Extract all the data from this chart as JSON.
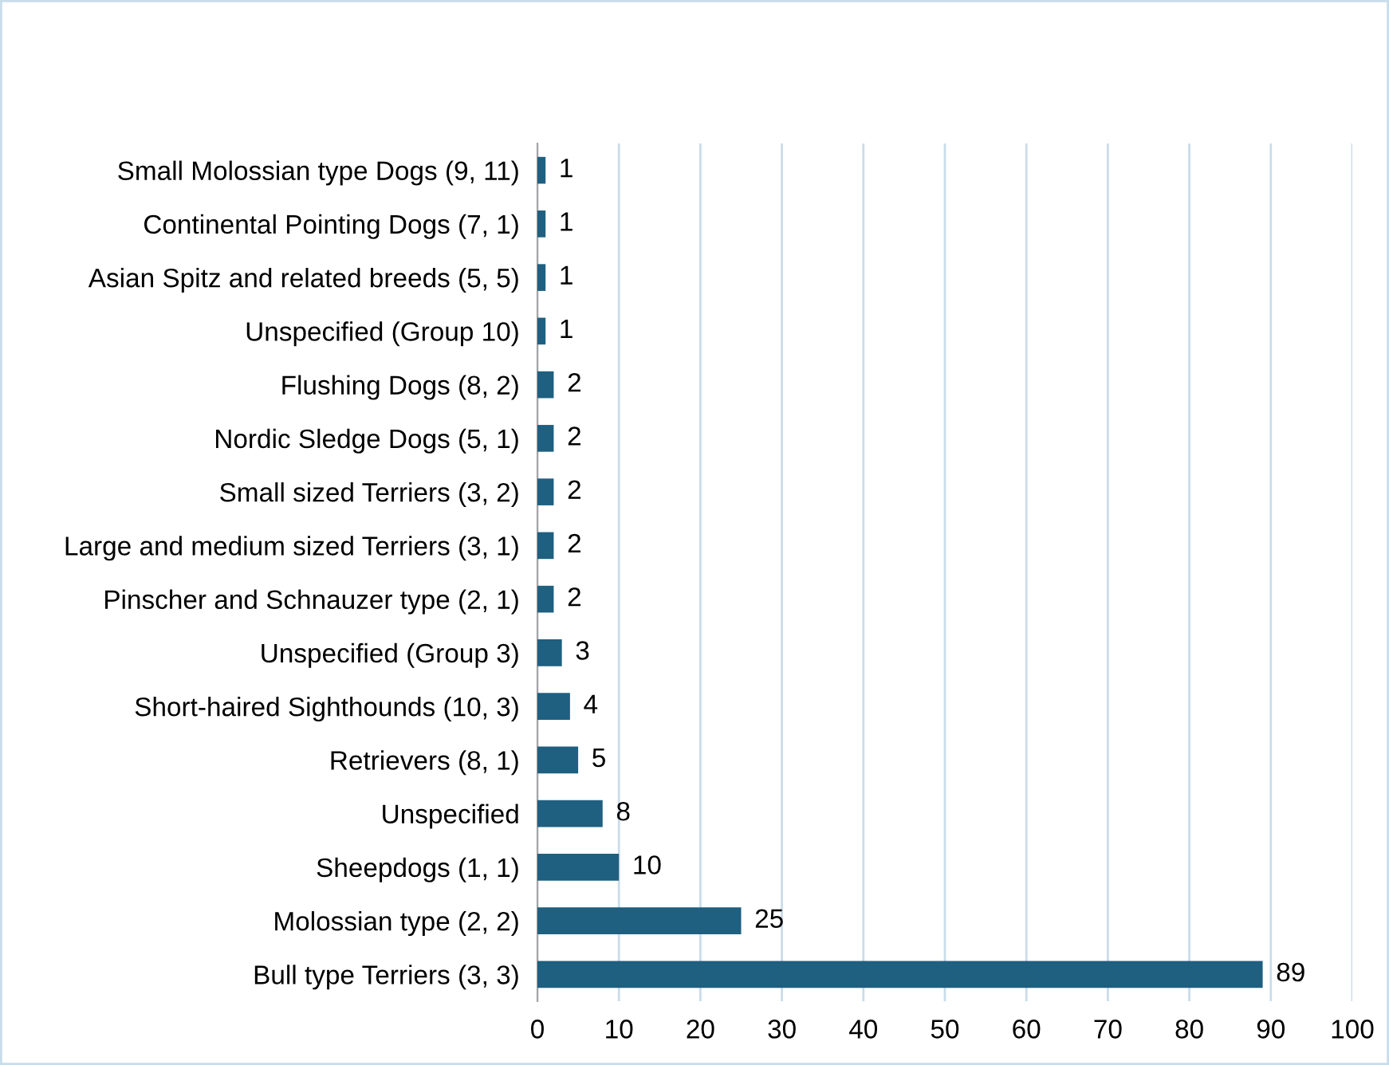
{
  "chart_data": {
    "type": "bar",
    "orientation": "horizontal",
    "categories": [
      "Small Molossian type Dogs (9, 11)",
      "Continental Pointing Dogs (7, 1)",
      "Asian Spitz and related breeds (5, 5)",
      "Unspecified (Group 10)",
      "Flushing Dogs (8, 2)",
      "Nordic Sledge Dogs (5, 1)",
      "Small sized Terriers (3, 2)",
      "Large and medium sized Terriers (3, 1)",
      "Pinscher and Schnauzer type (2, 1)",
      "Unspecified (Group 3)",
      "Short-haired Sighthounds (10, 3)",
      "Retrievers (8, 1)",
      "Unspecified",
      "Sheepdogs (1, 1)",
      "Molossian type (2, 2)",
      "Bull type Terriers (3, 3)"
    ],
    "values": [
      1,
      1,
      1,
      1,
      2,
      2,
      2,
      2,
      2,
      3,
      4,
      5,
      8,
      10,
      25,
      89
    ],
    "color": "#1f5f80",
    "xlim": [
      0,
      100
    ],
    "xticks": [
      0,
      10,
      20,
      30,
      40,
      50,
      60,
      70,
      80,
      90,
      100
    ],
    "grid": "x",
    "data_labels": true,
    "legend": false
  }
}
